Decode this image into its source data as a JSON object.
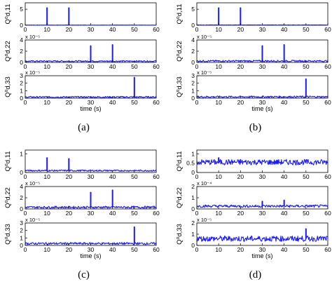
{
  "chart_data": [
    {
      "panel_label": "(a)",
      "type": "line",
      "x_axis": {
        "label": "time (s)",
        "range": [
          0,
          60
        ],
        "ticks": [
          "0",
          "10",
          "20",
          "30",
          "40",
          "50",
          "60"
        ]
      },
      "subplots": [
        {
          "ylabel": "Q⁰d,11",
          "y_ticks": [
            "0",
            "5"
          ],
          "ylim": [
            0,
            7
          ],
          "exponent": "",
          "baseline": 0.05,
          "noise": 0.03,
          "spikes": [
            {
              "x": 10,
              "y": 5.5
            },
            {
              "x": 20,
              "y": 5.5
            }
          ]
        },
        {
          "ylabel": "Q⁰d,22",
          "y_ticks": [
            "0",
            "2",
            "4"
          ],
          "ylim": [
            0,
            4
          ],
          "exponent": "x 10⁻⁵",
          "baseline": 0.22,
          "noise": 0.12,
          "spikes": [
            {
              "x": 30,
              "y": 3.0
            },
            {
              "x": 40,
              "y": 3.2
            }
          ]
        },
        {
          "ylabel": "Q⁰d,33",
          "y_ticks": [
            "0",
            "1",
            "2",
            "3"
          ],
          "ylim": [
            0,
            3
          ],
          "exponent": "x 10⁻⁵",
          "baseline": 0.15,
          "noise": 0.1,
          "spikes": [
            {
              "x": 50,
              "y": 2.8
            }
          ]
        }
      ]
    },
    {
      "panel_label": "(b)",
      "type": "line",
      "x_axis": {
        "label": "time (s)",
        "range": [
          0,
          60
        ],
        "ticks": [
          "0",
          "10",
          "20",
          "30",
          "40",
          "50",
          "60"
        ]
      },
      "subplots": [
        {
          "ylabel": "Q⁰d,11",
          "y_ticks": [
            "0",
            "5"
          ],
          "ylim": [
            0,
            7
          ],
          "exponent": "",
          "baseline": 0.08,
          "noise": 0.05,
          "spikes": [
            {
              "x": 10,
              "y": 5.5
            },
            {
              "x": 20,
              "y": 5.5
            }
          ]
        },
        {
          "ylabel": "Q⁰d,22",
          "y_ticks": [
            "0",
            "2",
            "4"
          ],
          "ylim": [
            0,
            4
          ],
          "exponent": "x 10⁻⁵",
          "baseline": 0.25,
          "noise": 0.15,
          "spikes": [
            {
              "x": 30,
              "y": 3.0
            },
            {
              "x": 40,
              "y": 3.2
            }
          ]
        },
        {
          "ylabel": "Q⁰d,33",
          "y_ticks": [
            "0",
            "1",
            "2",
            "3"
          ],
          "ylim": [
            0,
            3
          ],
          "exponent": "x 10⁻⁵",
          "baseline": 0.18,
          "noise": 0.12,
          "spikes": [
            {
              "x": 50,
              "y": 2.6
            }
          ]
        }
      ]
    },
    {
      "panel_label": "(c)",
      "type": "line",
      "x_axis": {
        "label": "time (s)",
        "range": [
          0,
          60
        ],
        "ticks": [
          "0",
          "10",
          "20",
          "30",
          "40",
          "50",
          "60"
        ]
      },
      "subplots": [
        {
          "ylabel": "Q⁰d,11",
          "y_ticks": [
            "0",
            "1"
          ],
          "ylim": [
            0,
            1.2
          ],
          "exponent": "",
          "baseline": 0.1,
          "noise": 0.04,
          "spikes": [
            {
              "x": 10,
              "y": 0.8
            },
            {
              "x": 20,
              "y": 0.75
            }
          ]
        },
        {
          "ylabel": "Q⁰d,22",
          "y_ticks": [
            "0",
            "2",
            "4"
          ],
          "ylim": [
            0,
            4
          ],
          "exponent": "x 10⁻⁵",
          "baseline": 0.3,
          "noise": 0.2,
          "spikes": [
            {
              "x": 30,
              "y": 3.0
            },
            {
              "x": 40,
              "y": 3.4
            }
          ]
        },
        {
          "ylabel": "Q⁰d,33",
          "y_ticks": [
            "0",
            "1",
            "2",
            "3"
          ],
          "ylim": [
            0,
            3
          ],
          "exponent": "x 10⁻⁵",
          "baseline": 0.25,
          "noise": 0.15,
          "spikes": [
            {
              "x": 50,
              "y": 2.5
            }
          ]
        }
      ]
    },
    {
      "panel_label": "(d)",
      "type": "line",
      "x_axis": {
        "label": "time (s)",
        "range": [
          0,
          60
        ],
        "ticks": [
          "0",
          "10",
          "20",
          "30",
          "40",
          "50",
          "60"
        ]
      },
      "subplots": [
        {
          "ylabel": "Q⁰d,11",
          "y_ticks": [
            "0",
            "0.5",
            "1"
          ],
          "ylim": [
            0,
            1.2
          ],
          "exponent": "",
          "baseline": 0.55,
          "noise": 0.15,
          "spikes": [
            {
              "x": 10,
              "y": 0.8
            },
            {
              "x": 20,
              "y": 0.7
            }
          ]
        },
        {
          "ylabel": "Q⁰d,22",
          "y_ticks": [
            "0",
            "1",
            "2"
          ],
          "ylim": [
            0,
            2
          ],
          "exponent": "x 10⁻⁴",
          "baseline": 0.25,
          "noise": 0.12,
          "spikes": [
            {
              "x": 30,
              "y": 0.7
            },
            {
              "x": 40,
              "y": 0.8
            }
          ]
        },
        {
          "ylabel": "Q⁰d,33",
          "y_ticks": [
            "0",
            "1",
            "2"
          ],
          "ylim": [
            0,
            2
          ],
          "exponent": "x 10⁻⁵",
          "baseline": 0.6,
          "noise": 0.25,
          "spikes": [
            {
              "x": 50,
              "y": 1.5
            }
          ]
        }
      ]
    }
  ],
  "colors": {
    "trace": "#1a1aff",
    "axes": "#000000"
  }
}
